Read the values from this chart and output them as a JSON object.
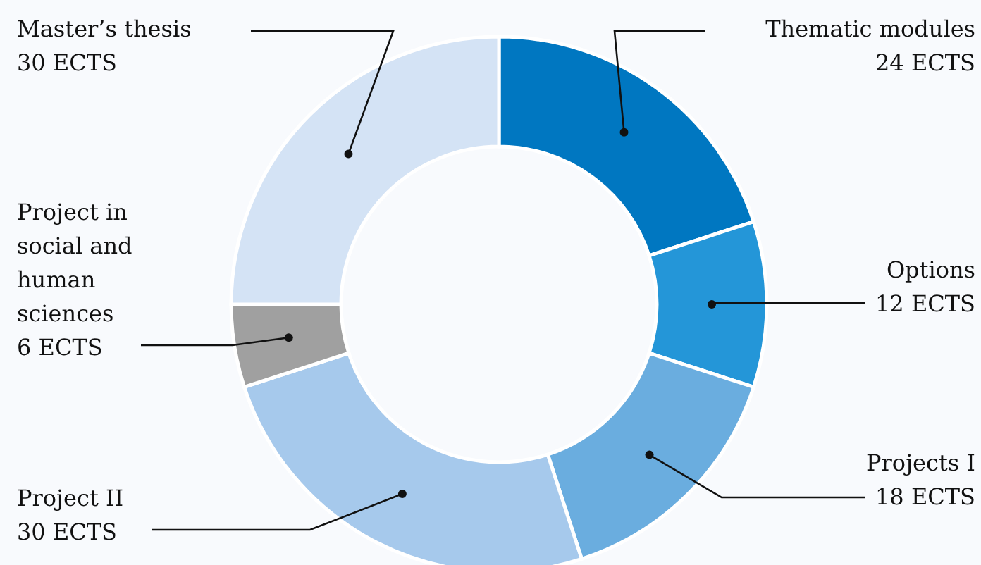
{
  "chart_data": {
    "type": "donut",
    "categories": [
      "Thematic modules",
      "Options",
      "Projects I",
      "Project II",
      "Project in social and human sciences",
      "Master’s thesis"
    ],
    "values": [
      24,
      12,
      18,
      30,
      6,
      30
    ],
    "value_labels": [
      "24 ECTS",
      "12 ECTS",
      "18 ECTS",
      "30 ECTS",
      "6 ECTS",
      "30 ECTS"
    ],
    "colors": [
      "#0077c1",
      "#2496d8",
      "#6aaddf",
      "#a6c9ec",
      "#a0a0a0",
      "#d4e3f5"
    ]
  }
}
